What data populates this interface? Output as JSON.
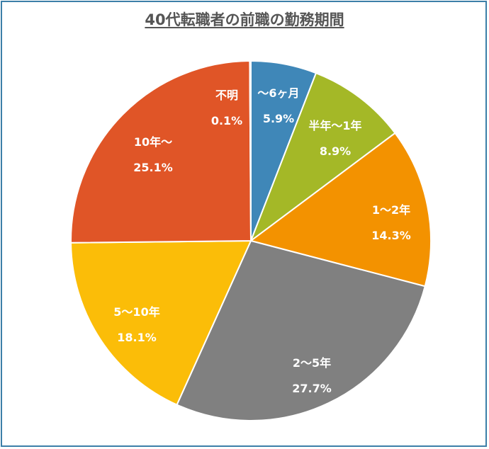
{
  "chart_data": {
    "type": "pie",
    "title": "40代転職者の前職の勤務期間",
    "categories": [
      "～6ヶ月",
      "半年～1年",
      "1～2年",
      "2～5年",
      "5～10年",
      "10年～",
      "不明"
    ],
    "values": [
      5.9,
      8.9,
      14.3,
      27.7,
      18.1,
      25.1,
      0.1
    ],
    "value_labels": [
      "5.9%",
      "8.9%",
      "14.3%",
      "27.7%",
      "18.1%",
      "25.1%",
      "0.1%"
    ],
    "colors": [
      "#3f87b8",
      "#a4b827",
      "#f39200",
      "#808080",
      "#fbbd08",
      "#e05527",
      "#3a3a3a"
    ],
    "start": "12 o'clock",
    "direction": "clockwise",
    "legend": "none",
    "data_labels": "inside"
  }
}
